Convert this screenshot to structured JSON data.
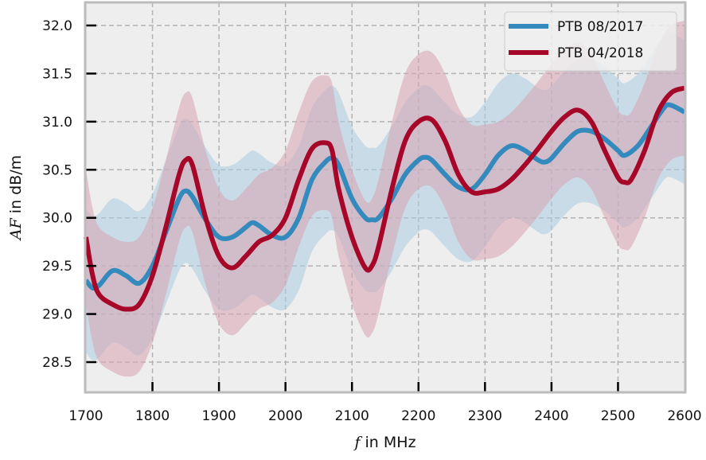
{
  "chart_data": {
    "type": "line",
    "title": "",
    "xlabel_italic": "f",
    "xlabel_rest": " in MHz",
    "ylabel_italic": "AF",
    "ylabel_rest": " in dB/m",
    "xlim": [
      1700,
      2600
    ],
    "ylim": [
      28.15,
      32.25
    ],
    "xticks": [
      1700,
      1800,
      1900,
      2000,
      2100,
      2200,
      2300,
      2400,
      2500,
      2600
    ],
    "xtick_labels": [
      "1700",
      "1800",
      "1900",
      "2000",
      "2100",
      "2200",
      "2300",
      "2400",
      "2500",
      "2600"
    ],
    "yticks": [
      28.5,
      29.0,
      29.5,
      30.0,
      30.5,
      31.0,
      31.5,
      32.0
    ],
    "ytick_labels": [
      "28.5",
      "29.0",
      "29.5",
      "30.0",
      "30.5",
      "31.0",
      "31.5",
      "32.0"
    ],
    "grid": true,
    "legend_position": "top-right",
    "series": [
      {
        "name": "PTB 08/2017",
        "color": "#348ABD",
        "band_color": "#a9cce0",
        "band_halfwidth": 0.75,
        "x": [
          1700,
          1710,
          1720,
          1740,
          1760,
          1780,
          1800,
          1820,
          1840,
          1850,
          1860,
          1880,
          1900,
          1920,
          1940,
          1950,
          1960,
          1980,
          2000,
          2020,
          2040,
          2060,
          2070,
          2080,
          2100,
          2120,
          2130,
          2140,
          2160,
          2180,
          2200,
          2210,
          2220,
          2240,
          2260,
          2280,
          2300,
          2320,
          2340,
          2360,
          2380,
          2390,
          2400,
          2420,
          2440,
          2460,
          2480,
          2500,
          2510,
          2530,
          2550,
          2570,
          2580,
          2600
        ],
        "y": [
          29.35,
          29.27,
          29.3,
          29.45,
          29.4,
          29.32,
          29.5,
          29.85,
          30.2,
          30.28,
          30.22,
          29.98,
          29.8,
          29.8,
          29.9,
          29.95,
          29.92,
          29.82,
          29.8,
          30.0,
          30.4,
          30.58,
          30.62,
          30.55,
          30.2,
          30.0,
          29.98,
          30.0,
          30.2,
          30.45,
          30.6,
          30.63,
          30.6,
          30.45,
          30.32,
          30.3,
          30.45,
          30.65,
          30.75,
          30.7,
          30.6,
          30.58,
          30.62,
          30.78,
          30.9,
          30.9,
          30.82,
          30.7,
          30.65,
          30.75,
          30.95,
          31.15,
          31.17,
          31.1
        ]
      },
      {
        "name": "PTB 04/2018",
        "color": "#A60628",
        "band_color": "#d9a4b0",
        "band_halfwidth": 0.7,
        "x": [
          1700,
          1710,
          1720,
          1740,
          1760,
          1780,
          1800,
          1820,
          1840,
          1850,
          1860,
          1880,
          1900,
          1920,
          1940,
          1960,
          1980,
          2000,
          2020,
          2040,
          2060,
          2070,
          2080,
          2100,
          2120,
          2130,
          2140,
          2160,
          2180,
          2200,
          2220,
          2240,
          2260,
          2280,
          2300,
          2320,
          2340,
          2360,
          2380,
          2400,
          2420,
          2440,
          2460,
          2480,
          2500,
          2510,
          2520,
          2540,
          2560,
          2580,
          2600
        ],
        "y": [
          29.8,
          29.4,
          29.2,
          29.1,
          29.05,
          29.1,
          29.4,
          29.9,
          30.45,
          30.6,
          30.55,
          30.0,
          29.6,
          29.48,
          29.6,
          29.75,
          29.82,
          30.0,
          30.4,
          30.72,
          30.78,
          30.7,
          30.3,
          29.8,
          29.48,
          29.5,
          29.7,
          30.3,
          30.8,
          31.0,
          31.02,
          30.8,
          30.45,
          30.27,
          30.27,
          30.3,
          30.4,
          30.55,
          30.72,
          30.9,
          31.05,
          31.12,
          31.0,
          30.7,
          30.42,
          30.37,
          30.4,
          30.7,
          31.1,
          31.3,
          31.35
        ]
      }
    ]
  }
}
